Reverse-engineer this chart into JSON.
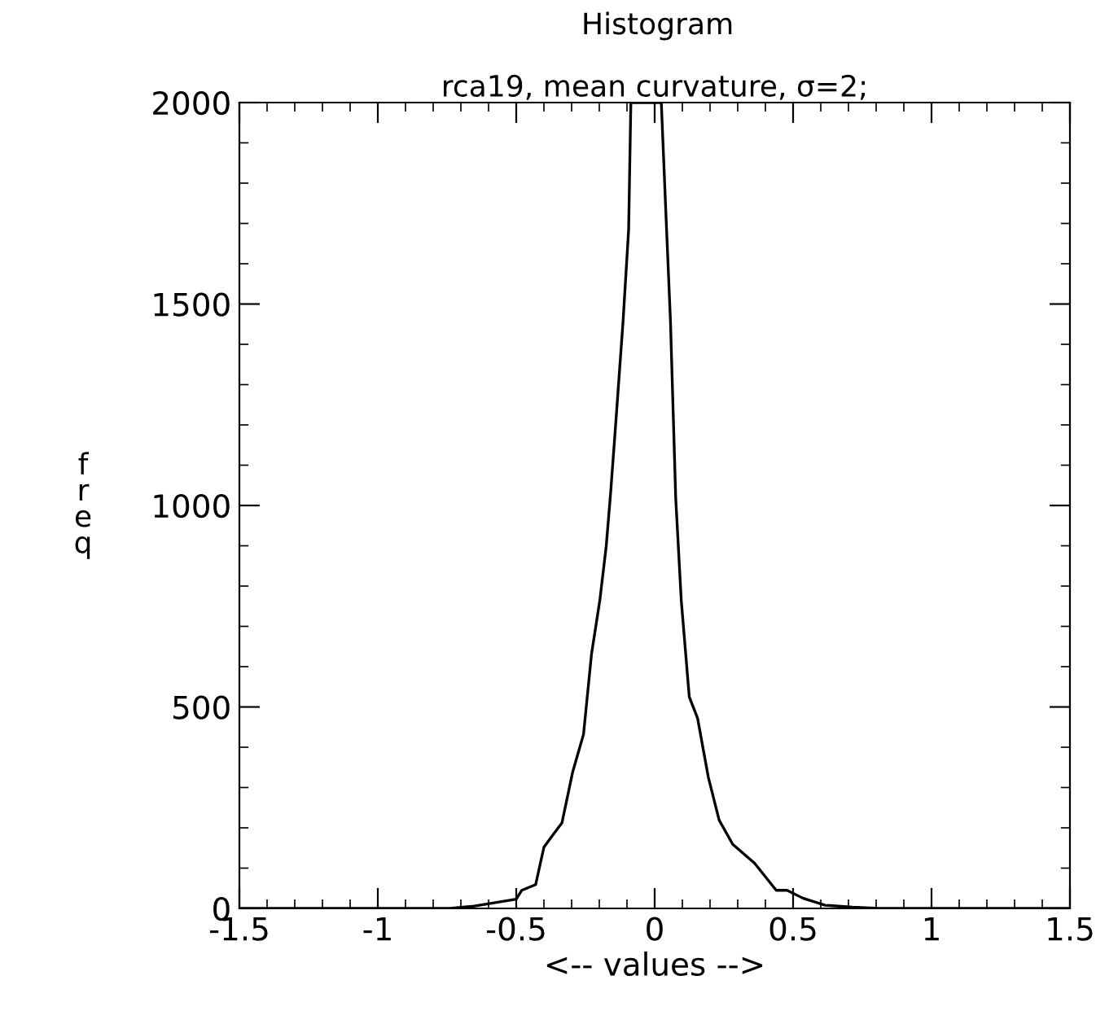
{
  "chart_data": {
    "type": "line",
    "title": "Histogram",
    "subtitle": "rca19, mean curvature, σ=2;",
    "xlabel": "<-- values -->",
    "ylabel": "freq",
    "series": [
      {
        "color": "#000000",
        "x": [
          -1.5,
          -0.74,
          -0.66,
          -0.5,
          -0.48,
          -0.43,
          -0.4,
          -0.365,
          -0.335,
          -0.296,
          -0.257,
          -0.228,
          -0.198,
          -0.175,
          -0.159,
          -0.139,
          -0.114,
          -0.094,
          -0.086,
          0.024,
          0.043,
          0.057,
          0.076,
          0.096,
          0.125,
          0.155,
          0.194,
          0.233,
          0.282,
          0.361,
          0.439,
          0.478,
          0.537,
          0.616,
          0.714,
          0.81,
          1.5
        ],
        "values": [
          0,
          0,
          5,
          23,
          45,
          59,
          152,
          185,
          212,
          339,
          432,
          632,
          765,
          899,
          1032,
          1219,
          1459,
          1685,
          2000,
          2000,
          1685,
          1459,
          1019,
          765,
          525,
          472,
          325,
          219,
          159,
          112,
          45,
          45,
          25,
          8,
          3,
          0,
          0
        ]
      }
    ],
    "xlim": [
      -1.5,
      1.5
    ],
    "xticks": [
      -1.5,
      -1,
      -0.5,
      0,
      0.5,
      1,
      1.5
    ],
    "ylim": [
      0,
      2000
    ],
    "yticks": [
      0,
      500,
      1000,
      1500,
      2000
    ],
    "grid": false,
    "legend": false
  }
}
